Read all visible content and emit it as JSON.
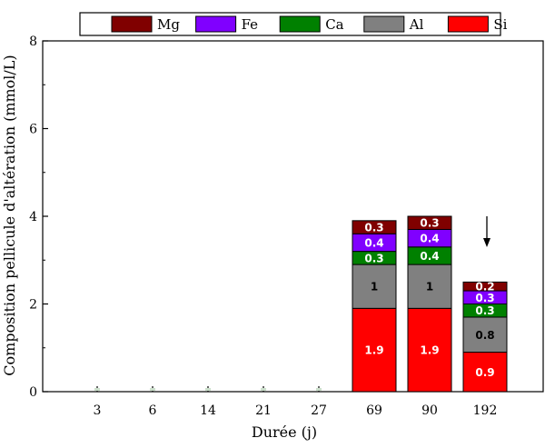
{
  "chart_data": {
    "type": "bar",
    "stacked": true,
    "categories": [
      "3",
      "6",
      "14",
      "21",
      "27",
      "69",
      "90",
      "192"
    ],
    "xlabel": "Durée (j)",
    "ylabel": "Composition pellicule d'altération (mmol/L)",
    "ylim": [
      0,
      8
    ],
    "yticks": [
      "0",
      "2",
      "4",
      "6",
      "8"
    ],
    "legend_position": "top",
    "grid": false,
    "series": [
      {
        "name": "Si",
        "color": "#ff0000",
        "label_color": "#ffffff",
        "values": [
          0,
          0,
          0,
          0,
          0,
          1.9,
          1.9,
          0.9
        ],
        "labels": [
          "",
          "",
          "",
          "",
          "",
          "1.9",
          "1.9",
          "0.9"
        ]
      },
      {
        "name": "Al",
        "color": "#808080",
        "label_color": "#000000",
        "values": [
          0,
          0,
          0,
          0,
          0,
          1.0,
          1.0,
          0.8
        ],
        "labels": [
          "",
          "",
          "",
          "",
          "",
          "1",
          "1",
          "0.8"
        ]
      },
      {
        "name": "Ca",
        "color": "#008000",
        "label_color": "#ffffff",
        "values": [
          0,
          0,
          0,
          0,
          0,
          0.3,
          0.4,
          0.3
        ],
        "labels": [
          "",
          "",
          "",
          "",
          "",
          "0.3",
          "0.4",
          "0.3"
        ]
      },
      {
        "name": "Fe",
        "color": "#8000ff",
        "label_color": "#ffffff",
        "values": [
          0,
          0,
          0,
          0,
          0,
          0.4,
          0.4,
          0.3
        ],
        "labels": [
          "",
          "",
          "",
          "",
          "",
          "0.4",
          "0.4",
          "0.3"
        ]
      },
      {
        "name": "Mg",
        "color": "#800000",
        "label_color": "#ffffff",
        "values": [
          0,
          0,
          0,
          0,
          0,
          0.3,
          0.3,
          0.2
        ],
        "labels": [
          "",
          "",
          "",
          "",
          "",
          "0.3",
          "0.3",
          "0.2"
        ]
      }
    ],
    "legend_order": [
      "Mg",
      "Fe",
      "Ca",
      "Al",
      "Si"
    ],
    "annotations": [
      {
        "type": "arrow-down",
        "category": "192"
      }
    ]
  }
}
